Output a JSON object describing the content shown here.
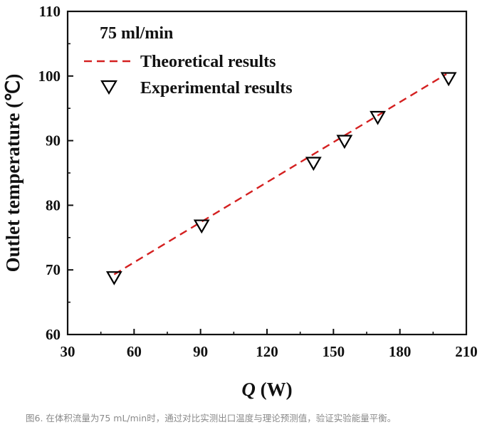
{
  "chart_data": {
    "type": "scatter",
    "annotation": "75 ml/min",
    "xlabel_italic": "Q",
    "xlabel_rest": " (W)",
    "ylabel": "Outlet temperature (℃)",
    "xlim": [
      30,
      210
    ],
    "ylim": [
      60,
      110
    ],
    "xticks": [
      "30",
      "60",
      "90",
      "120",
      "150",
      "180",
      "210"
    ],
    "yticks": [
      "60",
      "70",
      "80",
      "90",
      "100",
      "110"
    ],
    "grid": false,
    "legend_position": "top-left",
    "series": [
      {
        "name": "Theoretical results",
        "style": "dashed-line",
        "color": "#d42020",
        "x": [
          51,
          201
        ],
        "y": [
          69.3,
          100.3
        ]
      },
      {
        "name": "Experimental results",
        "style": "open-down-triangle",
        "color": "#000000",
        "x": [
          51,
          90.5,
          141,
          155,
          170,
          202
        ],
        "y": [
          68.9,
          76.9,
          86.6,
          90.0,
          93.7,
          99.7
        ]
      }
    ]
  },
  "caption": "图6. 在体积流量为75 mL/min时，通过对比实测出口温度与理论预测值，验证实验能量平衡。"
}
